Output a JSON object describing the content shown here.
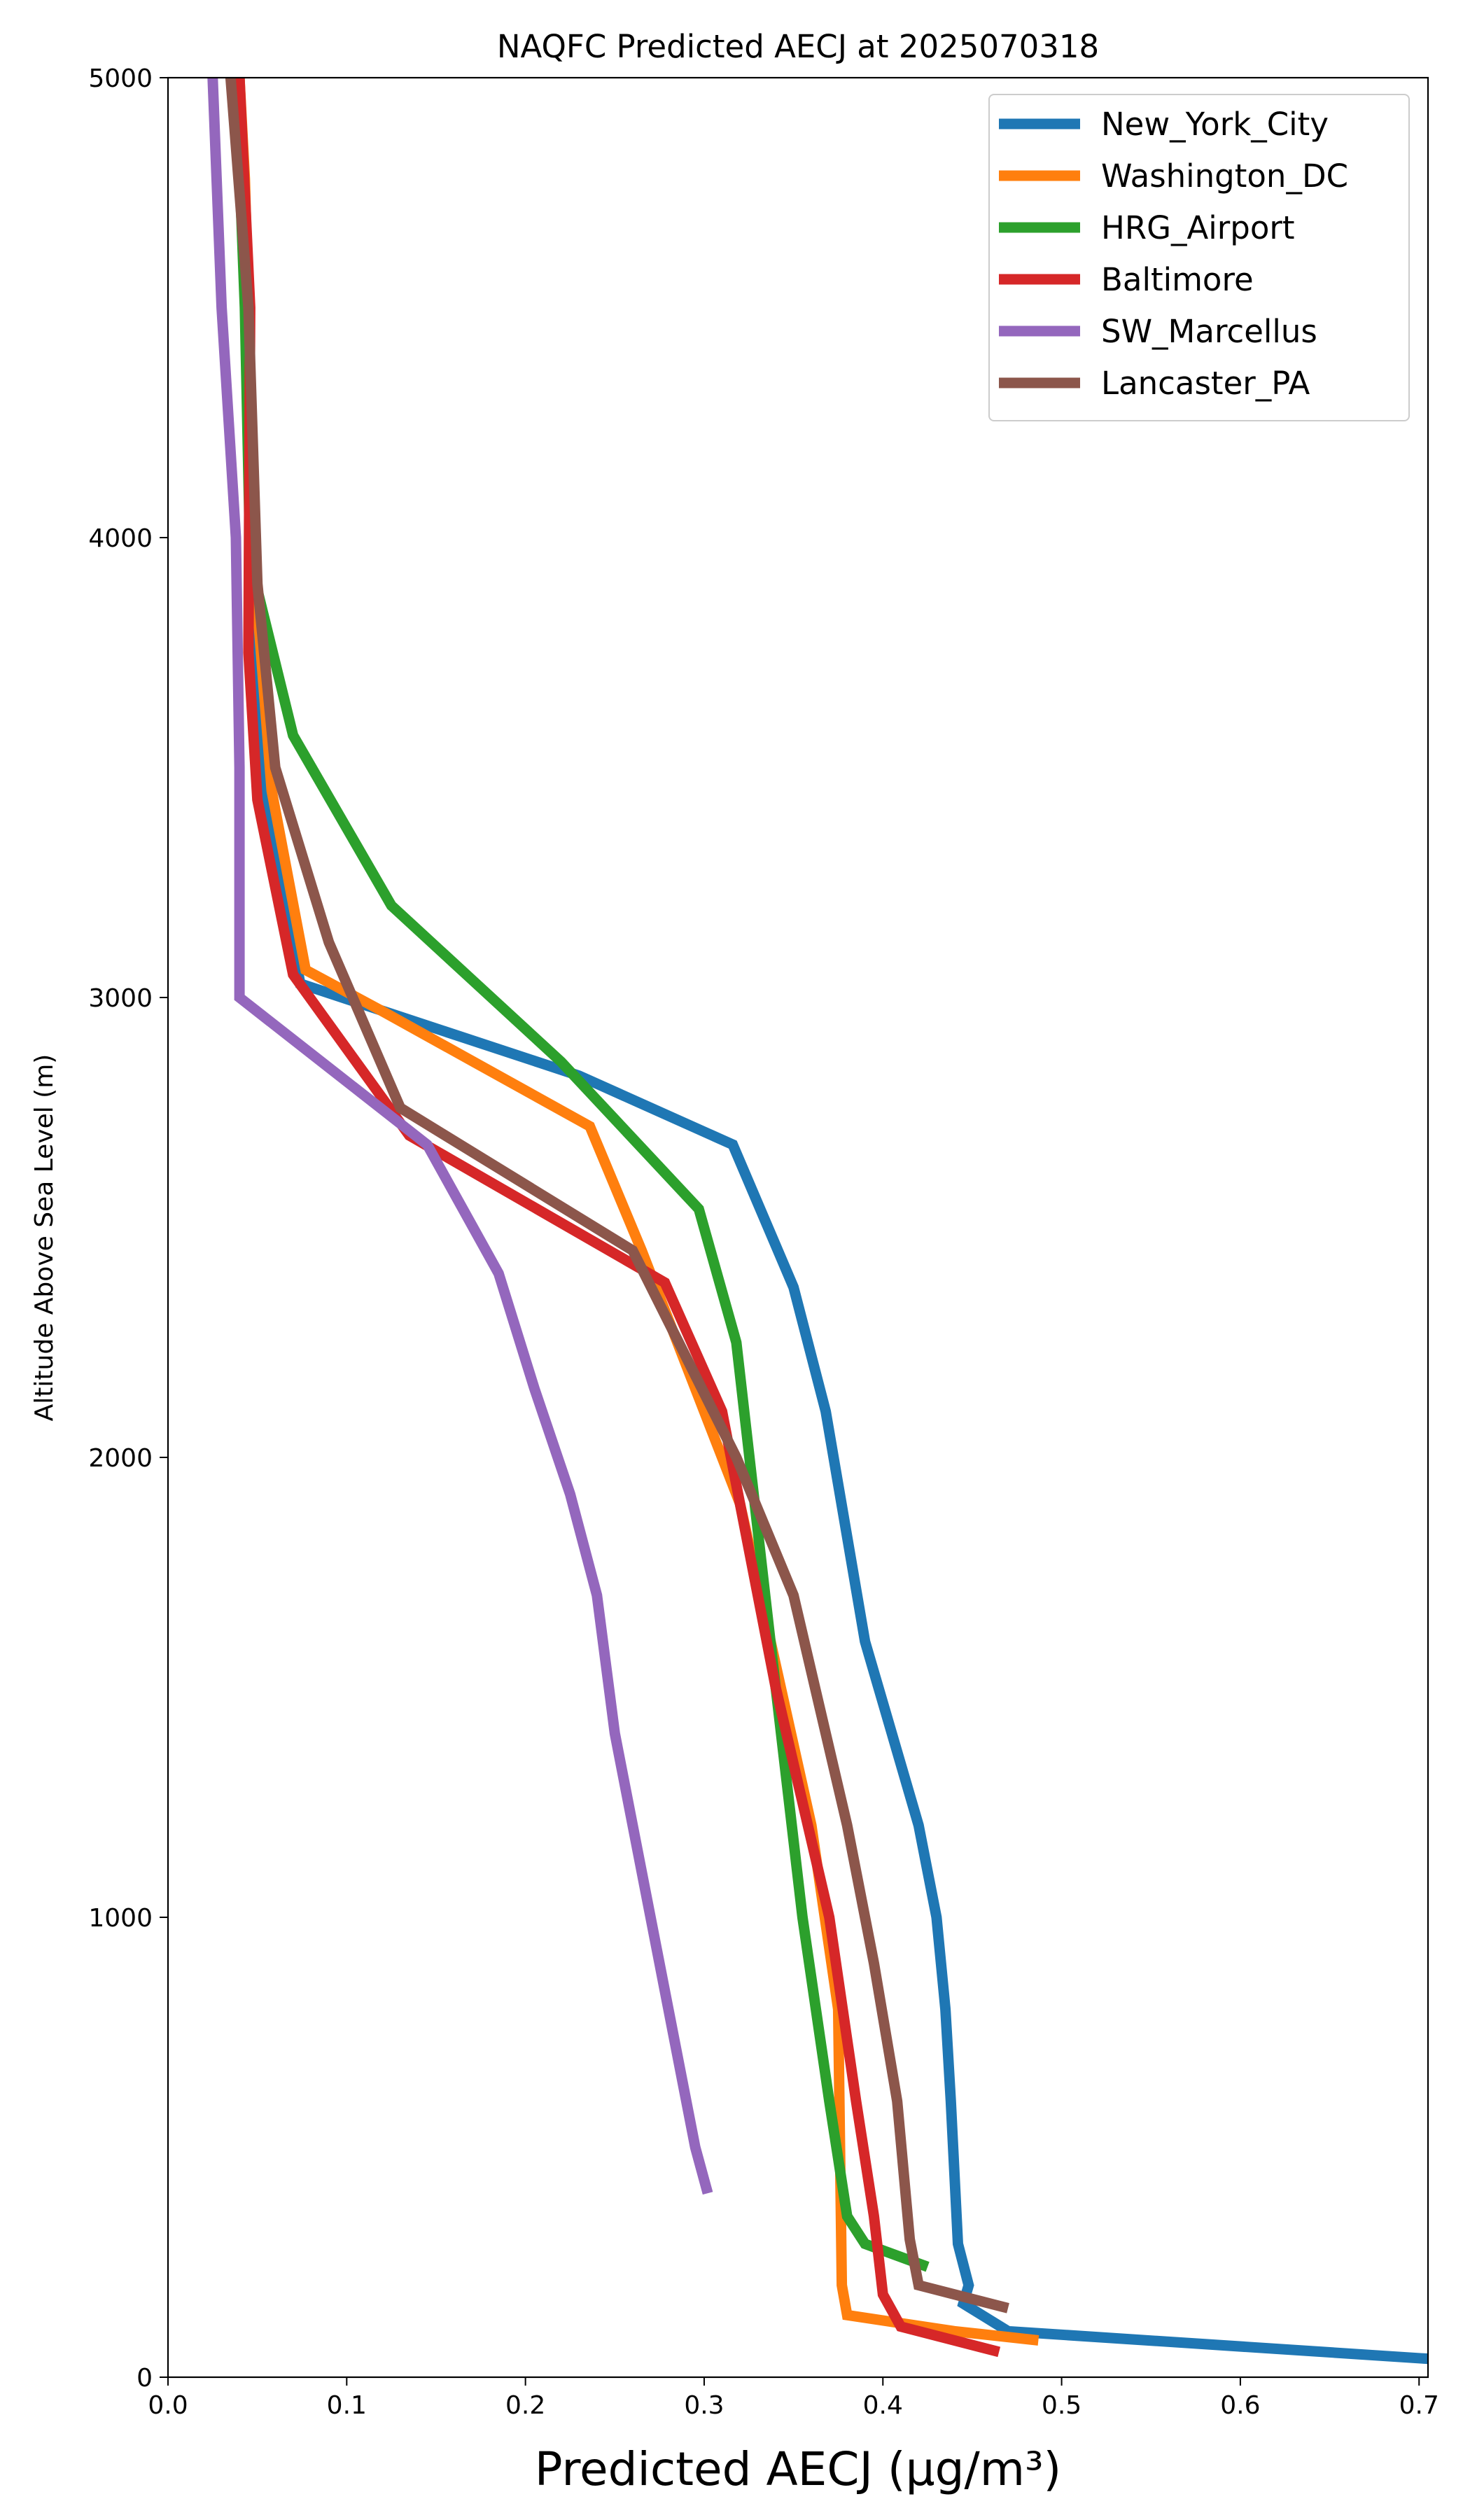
{
  "chart_data": {
    "type": "line",
    "title": "NAQFC Predicted AECJ at 2025070318",
    "xlabel": "Predicted AECJ (μg/m³)",
    "ylabel": "Altitude Above Sea Level (m)",
    "xlim": [
      0.0,
      0.705
    ],
    "ylim": [
      0,
      5000
    ],
    "xticks": [
      0.0,
      0.1,
      0.2,
      0.3,
      0.4,
      0.5,
      0.6,
      0.7
    ],
    "xtick_labels": [
      "0.0",
      "0.1",
      "0.2",
      "0.3",
      "0.4",
      "0.5",
      "0.6",
      "0.7"
    ],
    "yticks": [
      0,
      1000,
      2000,
      3000,
      4000,
      5000
    ],
    "ytick_labels": [
      "0",
      "1000",
      "2000",
      "3000",
      "4000",
      "5000"
    ],
    "grid": false,
    "legend_position": "top-right",
    "series": [
      {
        "name": "New_York_City",
        "color": "#1f77b4",
        "points": [
          [
            0.705,
            40
          ],
          [
            0.47,
            100
          ],
          [
            0.445,
            160
          ],
          [
            0.448,
            200
          ],
          [
            0.442,
            290
          ],
          [
            0.438,
            600
          ],
          [
            0.435,
            800
          ],
          [
            0.43,
            1000
          ],
          [
            0.42,
            1200
          ],
          [
            0.405,
            1400
          ],
          [
            0.39,
            1600
          ],
          [
            0.368,
            2100
          ],
          [
            0.35,
            2370
          ],
          [
            0.316,
            2680
          ],
          [
            0.23,
            2830
          ],
          [
            0.074,
            3030
          ],
          [
            0.054,
            3450
          ],
          [
            0.048,
            4000
          ],
          [
            0.044,
            4500
          ],
          [
            0.04,
            5000
          ]
        ]
      },
      {
        "name": "Washington_DC",
        "color": "#ff7f0e",
        "points": [
          [
            0.487,
            80
          ],
          [
            0.44,
            100
          ],
          [
            0.38,
            135
          ],
          [
            0.377,
            200
          ],
          [
            0.375,
            800
          ],
          [
            0.36,
            1200
          ],
          [
            0.32,
            1900
          ],
          [
            0.265,
            2450
          ],
          [
            0.236,
            2720
          ],
          [
            0.12,
            2970
          ],
          [
            0.077,
            3060
          ],
          [
            0.058,
            3450
          ],
          [
            0.047,
            4000
          ],
          [
            0.045,
            4500
          ],
          [
            0.043,
            4780
          ],
          [
            0.04,
            5000
          ]
        ]
      },
      {
        "name": "HRG_Airport",
        "color": "#2ca02c",
        "points": [
          [
            0.425,
            240
          ],
          [
            0.39,
            290
          ],
          [
            0.38,
            350
          ],
          [
            0.37,
            600
          ],
          [
            0.355,
            1000
          ],
          [
            0.34,
            1500
          ],
          [
            0.318,
            2250
          ],
          [
            0.297,
            2540
          ],
          [
            0.22,
            2860
          ],
          [
            0.125,
            3200
          ],
          [
            0.07,
            3570
          ],
          [
            0.046,
            3950
          ],
          [
            0.043,
            4500
          ],
          [
            0.038,
            5000
          ]
        ]
      },
      {
        "name": "Baltimore",
        "color": "#d62728",
        "points": [
          [
            0.465,
            55
          ],
          [
            0.41,
            110
          ],
          [
            0.4,
            180
          ],
          [
            0.395,
            350
          ],
          [
            0.385,
            600
          ],
          [
            0.37,
            1000
          ],
          [
            0.34,
            1500
          ],
          [
            0.31,
            2100
          ],
          [
            0.278,
            2380
          ],
          [
            0.135,
            2700
          ],
          [
            0.07,
            3050
          ],
          [
            0.05,
            3430
          ],
          [
            0.045,
            3750
          ],
          [
            0.046,
            4500
          ],
          [
            0.04,
            5000
          ]
        ]
      },
      {
        "name": "SW_Marcellus",
        "color": "#9467bd",
        "points": [
          [
            0.302,
            400
          ],
          [
            0.295,
            500
          ],
          [
            0.28,
            800
          ],
          [
            0.265,
            1100
          ],
          [
            0.25,
            1400
          ],
          [
            0.24,
            1700
          ],
          [
            0.225,
            1920
          ],
          [
            0.205,
            2150
          ],
          [
            0.185,
            2400
          ],
          [
            0.145,
            2680
          ],
          [
            0.04,
            3000
          ],
          [
            0.04,
            3500
          ],
          [
            0.038,
            4000
          ],
          [
            0.03,
            4500
          ],
          [
            0.025,
            5000
          ]
        ]
      },
      {
        "name": "Lancaster_PA",
        "color": "#8c564b",
        "points": [
          [
            0.47,
            150
          ],
          [
            0.42,
            200
          ],
          [
            0.415,
            300
          ],
          [
            0.408,
            600
          ],
          [
            0.395,
            900
          ],
          [
            0.38,
            1200
          ],
          [
            0.35,
            1700
          ],
          [
            0.318,
            2000
          ],
          [
            0.26,
            2450
          ],
          [
            0.13,
            2760
          ],
          [
            0.09,
            3120
          ],
          [
            0.06,
            3500
          ],
          [
            0.05,
            3900
          ],
          [
            0.045,
            4500
          ],
          [
            0.035,
            5000
          ]
        ]
      }
    ]
  }
}
